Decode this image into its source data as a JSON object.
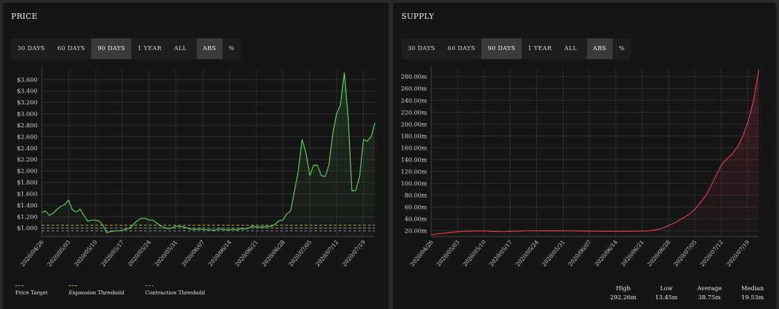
{
  "price_panel": {
    "title": "PRICE",
    "ranges": [
      "30 DAYS",
      "60 DAYS",
      "90 DAYS",
      "1 YEAR",
      "ALL"
    ],
    "active_range": 2,
    "modes": [
      "ABS",
      "%"
    ],
    "active_mode": 0,
    "legend": [
      {
        "label": "Price Target",
        "color": "#9a9a9a"
      },
      {
        "label": "Expansion Threshold",
        "color": "#b5b833"
      },
      {
        "label": "Contraction Threshold",
        "color": "#8a8a8a"
      }
    ]
  },
  "supply_panel": {
    "title": "SUPPLY",
    "ranges": [
      "30 DAYS",
      "60 DAYS",
      "90 DAYS",
      "1 YEAR",
      "ALL"
    ],
    "active_range": 2,
    "modes": [
      "ABS",
      "%"
    ],
    "active_mode": 0,
    "stats": [
      {
        "label": "High",
        "value": "292.26m"
      },
      {
        "label": "Low",
        "value": "13.45m"
      },
      {
        "label": "Average",
        "value": "38.75m"
      },
      {
        "label": "Median",
        "value": "19.53m"
      }
    ]
  },
  "colors": {
    "price_line": "#5fd35f",
    "supply_line": "#e23a5a",
    "grid": "#2c2c2c"
  },
  "chart_data": [
    {
      "type": "line",
      "title": "PRICE",
      "x_ticks": [
        "2020/04/26",
        "2020/05/03",
        "2020/05/10",
        "2020/05/17",
        "2020/05/24",
        "2020/05/31",
        "2020/06/07",
        "2020/06/14",
        "2020/06/21",
        "2020/06/28",
        "2020/07/05",
        "2020/07/12",
        "2020/07/19"
      ],
      "y_ticks": [
        "$1.000",
        "$1.200",
        "$1.400",
        "$1.600",
        "$1.800",
        "$2.000",
        "$2.200",
        "$2.400",
        "$2.600",
        "$2.800",
        "$3.000",
        "$3.200",
        "$3.400",
        "$3.600"
      ],
      "ylim": [
        0.85,
        3.75
      ],
      "xlim": [
        0,
        87
      ],
      "series": [
        {
          "name": "Price",
          "values": [
            1.27,
            1.3,
            1.22,
            1.26,
            1.33,
            1.38,
            1.41,
            1.49,
            1.32,
            1.28,
            1.33,
            1.22,
            1.12,
            1.14,
            1.14,
            1.12,
            1.05,
            0.92,
            0.94,
            0.95,
            0.95,
            0.96,
            0.98,
            1.0,
            1.07,
            1.13,
            1.17,
            1.17,
            1.14,
            1.14,
            1.09,
            1.04,
            1.01,
            0.99,
            1.0,
            1.03,
            1.03,
            1.02,
            1.0,
            0.98,
            0.98,
            0.98,
            0.98,
            0.97,
            0.97,
            0.96,
            0.98,
            0.98,
            0.97,
            0.97,
            0.98,
            0.97,
            0.99,
            0.98,
            1.0,
            1.03,
            1.02,
            1.02,
            1.02,
            1.03,
            1.03,
            1.07,
            1.13,
            1.14,
            1.25,
            1.3,
            1.65,
            2.0,
            2.55,
            2.32,
            1.92,
            2.1,
            2.1,
            1.92,
            1.9,
            2.1,
            2.65,
            3.0,
            3.15,
            3.72,
            2.95,
            1.65,
            1.66,
            1.9,
            2.55,
            2.52,
            2.6,
            2.84
          ]
        },
        {
          "name": "Price Target",
          "values": [
            1.0
          ]
        },
        {
          "name": "Expansion Threshold",
          "values": [
            1.05
          ]
        },
        {
          "name": "Contraction Threshold",
          "values": [
            0.95
          ]
        }
      ]
    },
    {
      "type": "area",
      "title": "SUPPLY",
      "x_ticks": [
        "2020/04/26",
        "2020/05/03",
        "2020/05/10",
        "2020/05/17",
        "2020/05/24",
        "2020/05/31",
        "2020/06/07",
        "2020/06/14",
        "2020/06/21",
        "2020/06/28",
        "2020/07/05",
        "2020/07/12",
        "2020/07/19"
      ],
      "y_ticks": [
        "20.00m",
        "40.00m",
        "60.00m",
        "80.00m",
        "100.00m",
        "120.00m",
        "140.00m",
        "160.00m",
        "180.00m",
        "200.00m",
        "220.00m",
        "240.00m",
        "260.00m",
        "280.00m"
      ],
      "ylim": [
        10,
        292
      ],
      "xlim": [
        0,
        87
      ],
      "series": [
        {
          "name": "Supply",
          "values": [
            13.45,
            14.5,
            15.5,
            16.5,
            17.5,
            18.3,
            18.9,
            19.3,
            19.5,
            19.6,
            19.5,
            19.2,
            18.8,
            18.5,
            18.6,
            18.9,
            19.2,
            19.5,
            19.7,
            19.8,
            19.8,
            19.9,
            19.9,
            19.9,
            19.9,
            19.8,
            19.7,
            19.6,
            19.5,
            19.4,
            19.3,
            19.2,
            19.1,
            19.0,
            19.0,
            19.0,
            19.0,
            19.1,
            19.1,
            19.2,
            19.3,
            19.8,
            20.7,
            22.5,
            25.0,
            29.0,
            33.0,
            38.0,
            43.0,
            49.0,
            57.0,
            68.0,
            80.0,
            96.0,
            115.0,
            132.0,
            142.0,
            150.0,
            162.0,
            180.0,
            205.0,
            240.0,
            292.26
          ]
        }
      ]
    }
  ]
}
